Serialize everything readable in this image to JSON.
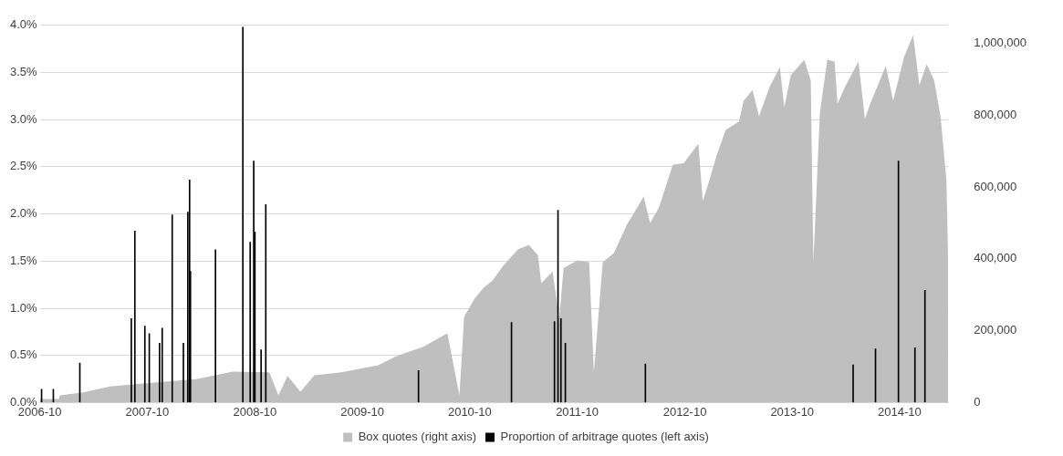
{
  "chart_data": {
    "type": "area",
    "xlim": [
      "2006-10-01",
      "2015-03-15"
    ],
    "xticks": [
      "2006-10",
      "2007-10",
      "2008-10",
      "2009-10",
      "2010-10",
      "2011-10",
      "2012-10",
      "2013-10",
      "2014-10"
    ],
    "ylim": [
      0,
      4
    ],
    "yticks": [
      {
        "value": 0,
        "label": "0.0%"
      },
      {
        "value": 0.5,
        "label": "0.5%"
      },
      {
        "value": 1,
        "label": "1.0%"
      },
      {
        "value": 1.5,
        "label": "1.5%"
      },
      {
        "value": 2,
        "label": "2.0%"
      },
      {
        "value": 2.5,
        "label": "2.5%"
      },
      {
        "value": 3,
        "label": "3.0%"
      },
      {
        "value": 3.5,
        "label": "3.5%"
      },
      {
        "value": 4,
        "label": "4.0%"
      }
    ],
    "y2lim": [
      0,
      1050000
    ],
    "y2ticks": [
      0,
      {
        "value": 200000,
        "label": "200,000"
      },
      {
        "value": 400000,
        "label": "400,000"
      },
      {
        "value": 600000,
        "label": "600,000"
      },
      {
        "value": 800000,
        "label": "800,000"
      },
      {
        "value": 1000000,
        "label": "1,000,000"
      }
    ],
    "grid": "y",
    "legend": "bottom",
    "series": [
      {
        "name": "Box quotes (right axis)",
        "axis": "y2",
        "color": "#bfbfbf",
        "x": [
          "2006-10-01",
          "2006-12-05",
          "2006-12-08",
          "2007-02-26",
          "2007-05-28",
          "2007-08-29",
          "2007-11-30",
          "2008-03-15",
          "2008-07-18",
          "2008-11-19",
          "2008-12-20",
          "2009-01-20",
          "2009-03-05",
          "2009-04-21",
          "2009-07-22",
          "2009-11-24",
          "2010-01-25",
          "2010-04-26",
          "2010-07-17",
          "2010-08-27",
          "2010-09-12",
          "2010-10-18",
          "2010-11-18",
          "2010-12-18",
          "2011-01-20",
          "2011-03-14",
          "2011-04-20",
          "2011-05-21",
          "2011-06-01",
          "2011-07-10",
          "2011-08-01",
          "2011-08-16",
          "2011-10-02",
          "2011-11-11",
          "2011-11-27",
          "2011-12-27",
          "2012-02-03",
          "2012-03-19",
          "2012-04-26",
          "2012-05-14",
          "2012-06-05",
          "2012-07-05",
          "2012-08-21",
          "2012-09-28",
          "2012-11-16",
          "2012-12-01",
          "2012-12-16",
          "2013-01-17",
          "2013-02-17",
          "2013-04-03",
          "2013-04-19",
          "2013-05-19",
          "2013-06-10",
          "2013-07-16",
          "2013-08-20",
          "2013-09-04",
          "2013-09-26",
          "2013-11-11",
          "2013-12-03",
          "2013-12-12",
          "2014-01-03",
          "2014-01-28",
          "2014-02-22",
          "2014-03-04",
          "2014-03-29",
          "2014-05-14",
          "2014-06-05",
          "2014-06-23",
          "2014-08-15",
          "2014-09-09",
          "2014-10-16",
          "2014-11-16",
          "2014-12-07",
          "2015-01-01",
          "2015-01-26",
          "2015-02-17",
          "2015-03-09",
          "2015-03-15"
        ],
        "values": [
          10000,
          10000,
          20000,
          28000,
          45000,
          52000,
          58000,
          65000,
          86000,
          84000,
          20000,
          74000,
          30000,
          76000,
          84000,
          104000,
          129000,
          155000,
          193000,
          20000,
          239000,
          290000,
          320000,
          340000,
          378000,
          426000,
          439000,
          410000,
          332000,
          365000,
          231000,
          375000,
          396000,
          391000,
          84000,
          391000,
          416000,
          497000,
          548000,
          574000,
          500000,
          543000,
          662000,
          667000,
          721000,
          561000,
          599000,
          688000,
          759000,
          782000,
          840000,
          870000,
          797000,
          878000,
          934000,
          822000,
          911000,
          954000,
          896000,
          391000,
          807000,
          954000,
          949000,
          832000,
          878000,
          949000,
          789000,
          832000,
          937000,
          840000,
          962000,
          1023000,
          883000,
          942000,
          898000,
          797000,
          619000,
          391000
        ]
      },
      {
        "name": "Proportion of arbitrage quotes (left axis)",
        "type": "bar",
        "color": "#000000",
        "x": [
          "2006-10-07",
          "2006-11-16",
          "2007-02-14",
          "2007-08-08",
          "2007-08-20",
          "2007-09-23",
          "2007-10-08",
          "2007-11-12",
          "2007-11-21",
          "2007-12-25",
          "2008-02-01",
          "2008-02-16",
          "2008-02-22",
          "2008-02-25",
          "2008-05-20",
          "2008-08-21",
          "2008-09-15",
          "2008-09-27",
          "2008-10-01",
          "2008-10-22",
          "2008-11-07",
          "2010-04-10",
          "2011-02-20",
          "2011-07-16",
          "2011-07-28",
          "2011-08-07",
          "2011-08-22",
          "2012-05-20",
          "2014-04-26",
          "2014-07-11",
          "2014-09-27",
          "2014-11-22",
          "2014-12-26"
        ],
        "values": [
          0.14,
          0.14,
          0.42,
          0.89,
          1.82,
          0.81,
          0.73,
          0.63,
          0.79,
          1.99,
          0.63,
          2.02,
          2.36,
          1.39,
          1.62,
          3.98,
          1.7,
          2.56,
          1.81,
          0.56,
          2.1,
          0.34,
          0.85,
          0.86,
          2.04,
          0.89,
          0.63,
          0.41,
          0.4,
          0.57,
          2.56,
          0.58,
          1.19
        ]
      }
    ]
  }
}
